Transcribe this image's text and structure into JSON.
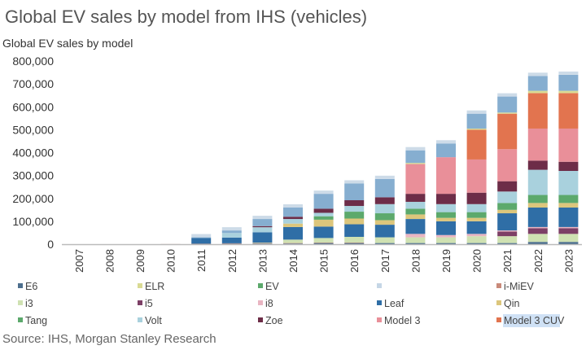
{
  "chart_data": {
    "type": "bar",
    "stacked": true,
    "title": "Global EV sales by model from IHS (vehicles)",
    "subtitle": "Global EV sales by model",
    "xlabel": "",
    "ylabel": "",
    "ylim": [
      0,
      800000
    ],
    "yticks": [
      0,
      100000,
      200000,
      300000,
      400000,
      500000,
      600000,
      700000,
      800000
    ],
    "ytick_labels": [
      "0",
      "100,000",
      "200,000",
      "300,000",
      "400,000",
      "500,000",
      "600,000",
      "700,000",
      "800,000"
    ],
    "grid": false,
    "legend_position": "bottom",
    "categories": [
      "2007",
      "2008",
      "2009",
      "2010",
      "2011",
      "2012",
      "2013",
      "2014",
      "2015",
      "2016",
      "2017",
      "2018",
      "2019",
      "2020",
      "2021",
      "2022",
      "2023"
    ],
    "series": [
      {
        "name": "E6",
        "color": "#4d6f8e",
        "values": [
          0,
          0,
          0,
          0,
          0,
          2000,
          3000,
          3000,
          5000,
          5000,
          5000,
          5000,
          5000,
          5000,
          5000,
          10000,
          10000
        ]
      },
      {
        "name": "i-MiEV",
        "color": "#c98a7a",
        "values": [
          0,
          0,
          0,
          500,
          2000,
          2000,
          2000,
          2000,
          2000,
          2000,
          0,
          0,
          0,
          0,
          0,
          0,
          0
        ]
      },
      {
        "name": "i3",
        "color": "#cfe1b2",
        "values": [
          0,
          0,
          0,
          0,
          0,
          0,
          2000,
          15000,
          20000,
          25000,
          25000,
          25000,
          25000,
          30000,
          30000,
          35000,
          35000
        ]
      },
      {
        "name": "i5",
        "color": "#7d3f66",
        "values": [
          0,
          0,
          0,
          0,
          0,
          0,
          0,
          0,
          0,
          0,
          0,
          0,
          0,
          0,
          20000,
          25000,
          25000
        ]
      },
      {
        "name": "i8",
        "color": "#e9b5c2",
        "values": [
          0,
          0,
          0,
          0,
          0,
          0,
          0,
          0,
          0,
          0,
          0,
          15000,
          10000,
          10000,
          5000,
          5000,
          5000
        ]
      },
      {
        "name": "Leaf",
        "color": "#2f6ea6",
        "values": [
          0,
          0,
          0,
          0,
          25000,
          25000,
          45000,
          55000,
          50000,
          55000,
          55000,
          65000,
          60000,
          55000,
          75000,
          85000,
          85000
        ]
      },
      {
        "name": "Qin",
        "color": "#dcc67c",
        "values": [
          0,
          0,
          0,
          0,
          0,
          0,
          0,
          15000,
          30000,
          25000,
          20000,
          20000,
          15000,
          15000,
          15000,
          20000,
          20000
        ]
      },
      {
        "name": "Tang",
        "color": "#5ca96c",
        "values": [
          0,
          0,
          0,
          0,
          0,
          0,
          0,
          0,
          15000,
          30000,
          30000,
          25000,
          25000,
          25000,
          30000,
          35000,
          35000
        ]
      },
      {
        "name": "EV",
        "color": "#7fae8c",
        "values": [
          0,
          0,
          0,
          0,
          0,
          0,
          0,
          0,
          0,
          0,
          0,
          0,
          0,
          0,
          0,
          0,
          0
        ]
      },
      {
        "name": "Volt",
        "color": "#a9d1dd",
        "values": [
          0,
          0,
          0,
          0,
          0,
          20000,
          22000,
          20000,
          15000,
          25000,
          40000,
          30000,
          35000,
          35000,
          50000,
          110000,
          105000
        ]
      },
      {
        "name": "Zoe",
        "color": "#6d2d48",
        "values": [
          0,
          0,
          0,
          0,
          0,
          0,
          5000,
          10000,
          18000,
          25000,
          30000,
          35000,
          45000,
          50000,
          45000,
          40000,
          40000
        ]
      },
      {
        "name": "Model 3",
        "color": "#e98f99",
        "values": [
          0,
          0,
          0,
          0,
          0,
          0,
          0,
          0,
          0,
          0,
          0,
          130000,
          160000,
          145000,
          140000,
          140000,
          145000
        ]
      },
      {
        "name": "Model 3 CUV",
        "color": "#e2744f",
        "values": [
          0,
          0,
          0,
          0,
          0,
          0,
          0,
          0,
          0,
          0,
          0,
          0,
          0,
          130000,
          155000,
          155000,
          155000
        ]
      },
      {
        "name": "ELR",
        "color": "#d9da93",
        "values": [
          0,
          0,
          0,
          0,
          0,
          0,
          0,
          0,
          0,
          0,
          0,
          5000,
          0,
          5000,
          5000,
          10000,
          10000
        ]
      },
      {
        "name": "",
        "color": "#86aed0",
        "values": [
          0,
          0,
          0,
          0,
          3000,
          11000,
          31000,
          40000,
          65000,
          73000,
          80000,
          55000,
          60000,
          65000,
          70000,
          65000,
          70000
        ]
      }
    ],
    "legend": [
      {
        "name": "E6",
        "color": "#4d6f8e"
      },
      {
        "name": "ELR",
        "color": "#d9da93"
      },
      {
        "name": "EV",
        "color": "#5ca96c"
      },
      {
        "name": "",
        "color": "#c5d6e6"
      },
      {
        "name": "i-MiEV",
        "color": "#c98a7a"
      },
      {
        "name": "i3",
        "color": "#cfe1b2"
      },
      {
        "name": "i5",
        "color": "#7d3f66"
      },
      {
        "name": "i8",
        "color": "#e9b5c2"
      },
      {
        "name": "Leaf",
        "color": "#2f6ea6"
      },
      {
        "name": "Qin",
        "color": "#dcc67c"
      },
      {
        "name": "Tang",
        "color": "#5ca96c"
      },
      {
        "name": "Volt",
        "color": "#a9d1dd"
      },
      {
        "name": "Zoe",
        "color": "#6d2d48"
      },
      {
        "name": "Model 3",
        "color": "#e98f99"
      },
      {
        "name": "Model 3 CUV",
        "color": "#e2744f"
      }
    ],
    "source": "Source: IHS, Morgan Stanley Research"
  }
}
